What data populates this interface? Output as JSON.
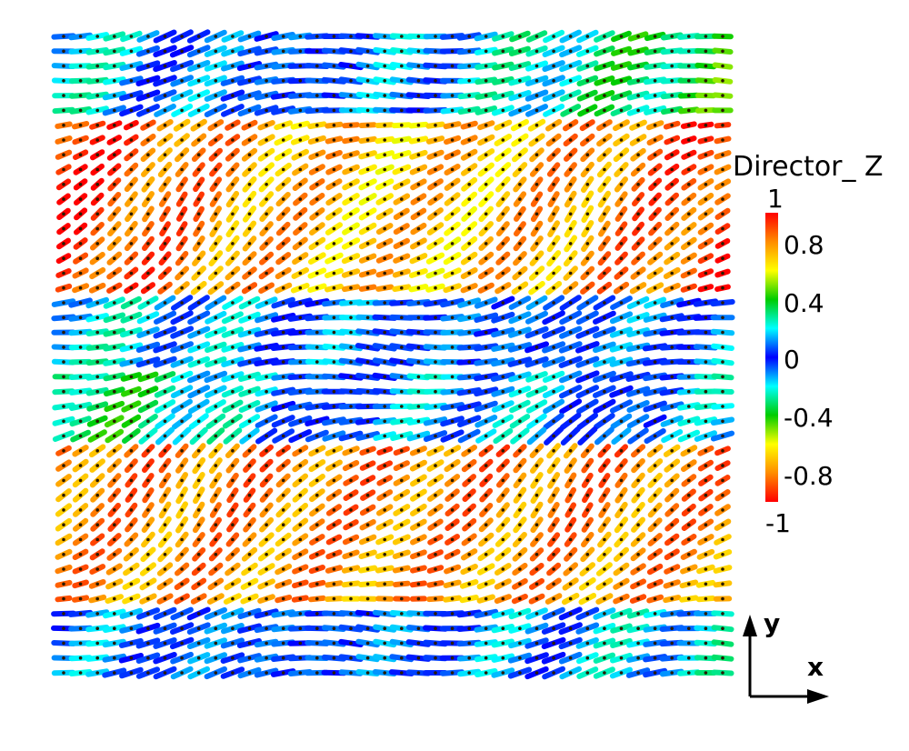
{
  "legend": {
    "title": "Director_ Z",
    "ticks": [
      "1",
      "0.8",
      "0.4",
      "0",
      "-0.4",
      "-0.8",
      "-1"
    ],
    "range": [
      -1,
      1
    ],
    "colors": [
      "#ff0000",
      "#ff8c00",
      "#ffff00",
      "#00cc00",
      "#00ffff",
      "#0000ff",
      "#00ffff",
      "#00cc00",
      "#ffff00",
      "#ff8c00",
      "#ff0000"
    ]
  },
  "orientation_axes": {
    "vertical": "y",
    "horizontal": "x"
  }
}
